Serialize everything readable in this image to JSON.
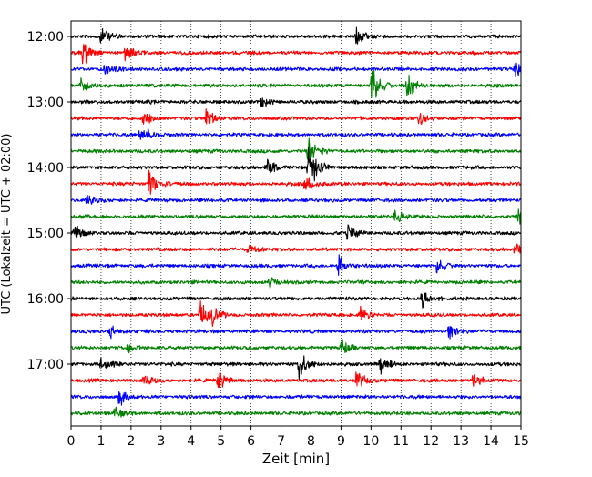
{
  "chart_data": {
    "type": "line",
    "title": "",
    "xlabel": "Zeit  [min]",
    "ylabel": "UTC (Lokalzeit = UTC + 02:00)",
    "x_ticks": [
      0,
      1,
      2,
      3,
      4,
      5,
      6,
      7,
      8,
      9,
      10,
      11,
      12,
      13,
      14,
      15
    ],
    "xlim": [
      0,
      15
    ],
    "y_tick_labels": [
      "12:00",
      "13:00",
      "14:00",
      "15:00",
      "16:00",
      "17:00"
    ],
    "trace_interval_minutes": 15,
    "first_trace": "12:00",
    "grid": "vertical dotted",
    "trace_colors": [
      "#000000",
      "#ff0000",
      "#0000ff",
      "#008000"
    ],
    "traces": [
      {
        "start": "12:00",
        "color": "#000000",
        "events": [
          {
            "t": 1.0,
            "amp": 1.1
          },
          {
            "t": 9.5,
            "amp": 0.9
          }
        ]
      },
      {
        "start": "12:15",
        "color": "#ff0000",
        "events": [
          {
            "t": 0.4,
            "amp": 1.3
          },
          {
            "t": 1.8,
            "amp": 0.7
          }
        ]
      },
      {
        "start": "12:30",
        "color": "#0000ff",
        "events": [
          {
            "t": 14.8,
            "amp": 1.1
          },
          {
            "t": 1.1,
            "amp": 0.6
          }
        ]
      },
      {
        "start": "12:45",
        "color": "#008000",
        "events": [
          {
            "t": 10.0,
            "amp": 2.2
          },
          {
            "t": 11.2,
            "amp": 1.5
          },
          {
            "t": 0.3,
            "amp": 0.8
          }
        ]
      },
      {
        "start": "13:00",
        "color": "#000000",
        "events": [
          {
            "t": 6.3,
            "amp": 0.6
          }
        ]
      },
      {
        "start": "13:15",
        "color": "#ff0000",
        "events": [
          {
            "t": 2.4,
            "amp": 0.9
          },
          {
            "t": 4.5,
            "amp": 1.0
          },
          {
            "t": 11.6,
            "amp": 0.7
          }
        ]
      },
      {
        "start": "13:30",
        "color": "#0000ff",
        "events": [
          {
            "t": 2.3,
            "amp": 1.4
          }
        ]
      },
      {
        "start": "13:45",
        "color": "#008000",
        "events": [
          {
            "t": 7.9,
            "amp": 1.5
          }
        ]
      },
      {
        "start": "14:00",
        "color": "#000000",
        "events": [
          {
            "t": 7.9,
            "amp": 1.8
          },
          {
            "t": 6.5,
            "amp": 1.1
          },
          {
            "t": 8.1,
            "amp": 1.0
          }
        ]
      },
      {
        "start": "14:15",
        "color": "#ff0000",
        "events": [
          {
            "t": 2.6,
            "amp": 1.7
          },
          {
            "t": 7.8,
            "amp": 1.0
          }
        ]
      },
      {
        "start": "14:30",
        "color": "#0000ff",
        "events": [
          {
            "t": 0.5,
            "amp": 0.7
          }
        ]
      },
      {
        "start": "14:45",
        "color": "#008000",
        "events": [
          {
            "t": 14.9,
            "amp": 1.0
          },
          {
            "t": 10.8,
            "amp": 0.7
          }
        ]
      },
      {
        "start": "15:00",
        "color": "#000000",
        "events": [
          {
            "t": 9.2,
            "amp": 0.9
          },
          {
            "t": 0.1,
            "amp": 0.8
          }
        ]
      },
      {
        "start": "15:15",
        "color": "#ff0000",
        "events": [
          {
            "t": 14.8,
            "amp": 0.7
          },
          {
            "t": 5.9,
            "amp": 0.5
          }
        ]
      },
      {
        "start": "15:30",
        "color": "#0000ff",
        "events": [
          {
            "t": 8.9,
            "amp": 1.3
          },
          {
            "t": 12.2,
            "amp": 0.8
          }
        ]
      },
      {
        "start": "15:45",
        "color": "#008000",
        "events": [
          {
            "t": 6.6,
            "amp": 0.6
          }
        ]
      },
      {
        "start": "16:00",
        "color": "#000000",
        "events": [
          {
            "t": 11.7,
            "amp": 1.1
          }
        ]
      },
      {
        "start": "16:15",
        "color": "#ff0000",
        "events": [
          {
            "t": 4.3,
            "amp": 1.5
          },
          {
            "t": 4.7,
            "amp": 0.9
          },
          {
            "t": 9.6,
            "amp": 0.8
          }
        ]
      },
      {
        "start": "16:30",
        "color": "#0000ff",
        "events": [
          {
            "t": 12.6,
            "amp": 1.0
          },
          {
            "t": 1.3,
            "amp": 0.6
          }
        ]
      },
      {
        "start": "16:45",
        "color": "#008000",
        "events": [
          {
            "t": 9.0,
            "amp": 0.8
          },
          {
            "t": 1.9,
            "amp": 0.5
          }
        ]
      },
      {
        "start": "17:00",
        "color": "#000000",
        "events": [
          {
            "t": 7.6,
            "amp": 1.6
          },
          {
            "t": 1.0,
            "amp": 0.8
          },
          {
            "t": 10.3,
            "amp": 0.9
          }
        ]
      },
      {
        "start": "17:15",
        "color": "#ff0000",
        "events": [
          {
            "t": 4.9,
            "amp": 0.9
          },
          {
            "t": 9.5,
            "amp": 1.0
          },
          {
            "t": 13.4,
            "amp": 0.8
          },
          {
            "t": 2.4,
            "amp": 0.7
          }
        ]
      },
      {
        "start": "17:30",
        "color": "#0000ff",
        "events": [
          {
            "t": 1.6,
            "amp": 0.9
          }
        ]
      },
      {
        "start": "17:45",
        "color": "#008000",
        "events": [
          {
            "t": 1.4,
            "amp": 0.6
          }
        ]
      }
    ]
  }
}
